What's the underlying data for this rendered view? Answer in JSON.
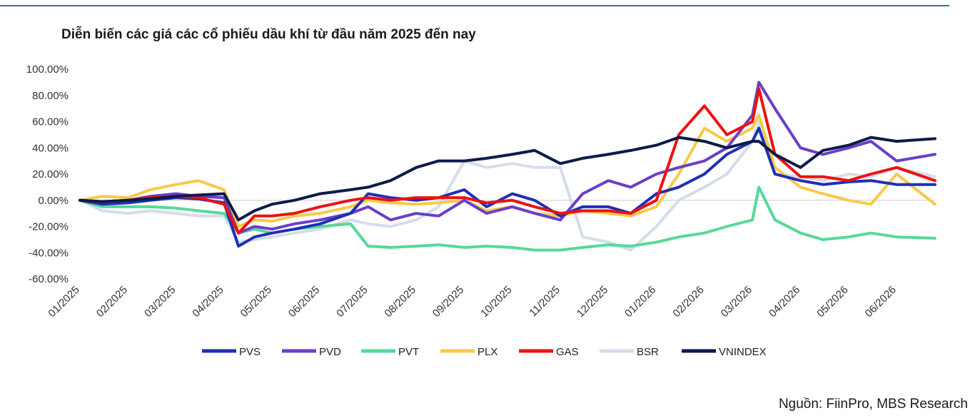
{
  "page": {
    "title": "Diễn biến các giá các cổ phiếu dầu khí từ đầu năm 2025 đến nay",
    "source": "Nguồn: FiinPro, MBS Research"
  },
  "chart_data": {
    "type": "line",
    "title": "Diễn biến các giá các cổ phiếu dầu khí từ đầu năm 2025 đến nay",
    "xlabel": "",
    "ylabel": "",
    "x_ticks": [
      "01/2025",
      "02/2025",
      "03/2025",
      "04/2025",
      "05/2025",
      "06/2025",
      "07/2025",
      "08/2025",
      "09/2025",
      "10/2025",
      "11/2025",
      "12/2025",
      "01/2026",
      "02/2026",
      "03/2026",
      "04/2026",
      "05/2026",
      "06/2026"
    ],
    "y_ticks": [
      "100.00%",
      "80.00%",
      "60.00%",
      "40.00%",
      "20.00%",
      "0.00%",
      "-20.00%",
      "-40.00%",
      "-60.00%"
    ],
    "ylim": [
      -60,
      100
    ],
    "x_range": [
      "2025-01",
      "2026-06-25"
    ],
    "grid": "zero-line only",
    "legend_position": "bottom",
    "series": [
      {
        "name": "PVS",
        "color": "#1f2fb5",
        "points": [
          [
            "2025-01",
            0
          ],
          [
            "2025-01-15",
            -3
          ],
          [
            "2025-02",
            -2
          ],
          [
            "2025-02-15",
            0
          ],
          [
            "2025-03",
            2
          ],
          [
            "2025-03-15",
            1
          ],
          [
            "2025-04",
            -2
          ],
          [
            "2025-04-10",
            -35
          ],
          [
            "2025-04-20",
            -28
          ],
          [
            "2025-05",
            -25
          ],
          [
            "2025-05-15",
            -22
          ],
          [
            "2025-06",
            -18
          ],
          [
            "2025-06-20",
            -10
          ],
          [
            "2025-07",
            5
          ],
          [
            "2025-07-15",
            2
          ],
          [
            "2025-08",
            0
          ],
          [
            "2025-08-15",
            2
          ],
          [
            "2025-09",
            8
          ],
          [
            "2025-09-15",
            -5
          ],
          [
            "2025-10",
            5
          ],
          [
            "2025-10-15",
            0
          ],
          [
            "2025-11",
            -12
          ],
          [
            "2025-11-15",
            -5
          ],
          [
            "2025-12",
            -5
          ],
          [
            "2025-12-15",
            -10
          ],
          [
            "2026-01",
            5
          ],
          [
            "2026-01-15",
            10
          ],
          [
            "2026-02",
            20
          ],
          [
            "2026-02-15",
            35
          ],
          [
            "2026-03",
            45
          ],
          [
            "2026-03-05",
            55
          ],
          [
            "2026-03-15",
            20
          ],
          [
            "2026-04",
            15
          ],
          [
            "2026-04-15",
            12
          ],
          [
            "2026-05",
            14
          ],
          [
            "2026-05-15",
            15
          ],
          [
            "2026-06",
            12
          ],
          [
            "2026-06-25",
            12
          ]
        ]
      },
      {
        "name": "PVD",
        "color": "#6a3fc9",
        "points": [
          [
            "2025-01",
            0
          ],
          [
            "2025-01-15",
            -2
          ],
          [
            "2025-02",
            0
          ],
          [
            "2025-02-15",
            3
          ],
          [
            "2025-03",
            5
          ],
          [
            "2025-03-15",
            3
          ],
          [
            "2025-04",
            2
          ],
          [
            "2025-04-10",
            -25
          ],
          [
            "2025-04-20",
            -20
          ],
          [
            "2025-05",
            -22
          ],
          [
            "2025-05-15",
            -18
          ],
          [
            "2025-06",
            -15
          ],
          [
            "2025-06-20",
            -10
          ],
          [
            "2025-07",
            -5
          ],
          [
            "2025-07-15",
            -15
          ],
          [
            "2025-08",
            -10
          ],
          [
            "2025-08-15",
            -12
          ],
          [
            "2025-09",
            0
          ],
          [
            "2025-09-15",
            -10
          ],
          [
            "2025-10",
            -5
          ],
          [
            "2025-10-15",
            -10
          ],
          [
            "2025-11",
            -15
          ],
          [
            "2025-11-15",
            5
          ],
          [
            "2025-12",
            15
          ],
          [
            "2025-12-15",
            10
          ],
          [
            "2026-01",
            20
          ],
          [
            "2026-01-15",
            25
          ],
          [
            "2026-02",
            30
          ],
          [
            "2026-02-15",
            40
          ],
          [
            "2026-03",
            65
          ],
          [
            "2026-03-05",
            90
          ],
          [
            "2026-03-15",
            70
          ],
          [
            "2026-04",
            40
          ],
          [
            "2026-04-15",
            35
          ],
          [
            "2026-05",
            40
          ],
          [
            "2026-05-15",
            45
          ],
          [
            "2026-06",
            30
          ],
          [
            "2026-06-25",
            35
          ]
        ]
      },
      {
        "name": "PVT",
        "color": "#56d99a",
        "points": [
          [
            "2025-01",
            0
          ],
          [
            "2025-01-15",
            -5
          ],
          [
            "2025-02",
            -5
          ],
          [
            "2025-02-15",
            -5
          ],
          [
            "2025-03",
            -6
          ],
          [
            "2025-03-15",
            -8
          ],
          [
            "2025-04",
            -10
          ],
          [
            "2025-04-10",
            -25
          ],
          [
            "2025-04-20",
            -22
          ],
          [
            "2025-05",
            -25
          ],
          [
            "2025-05-15",
            -22
          ],
          [
            "2025-06",
            -20
          ],
          [
            "2025-06-20",
            -18
          ],
          [
            "2025-07",
            -35
          ],
          [
            "2025-07-15",
            -36
          ],
          [
            "2025-08",
            -35
          ],
          [
            "2025-08-15",
            -34
          ],
          [
            "2025-09",
            -36
          ],
          [
            "2025-09-15",
            -35
          ],
          [
            "2025-10",
            -36
          ],
          [
            "2025-10-15",
            -38
          ],
          [
            "2025-11",
            -38
          ],
          [
            "2025-11-15",
            -36
          ],
          [
            "2025-12",
            -34
          ],
          [
            "2025-12-15",
            -35
          ],
          [
            "2026-01",
            -32
          ],
          [
            "2026-01-15",
            -28
          ],
          [
            "2026-02",
            -25
          ],
          [
            "2026-02-15",
            -20
          ],
          [
            "2026-03",
            -15
          ],
          [
            "2026-03-05",
            10
          ],
          [
            "2026-03-15",
            -15
          ],
          [
            "2026-04",
            -25
          ],
          [
            "2026-04-15",
            -30
          ],
          [
            "2026-05",
            -28
          ],
          [
            "2026-05-15",
            -25
          ],
          [
            "2026-06",
            -28
          ],
          [
            "2026-06-25",
            -29
          ]
        ]
      },
      {
        "name": "PLX",
        "color": "#f8c94a",
        "points": [
          [
            "2025-01",
            0
          ],
          [
            "2025-01-15",
            3
          ],
          [
            "2025-02",
            2
          ],
          [
            "2025-02-15",
            8
          ],
          [
            "2025-03",
            12
          ],
          [
            "2025-03-15",
            15
          ],
          [
            "2025-04",
            8
          ],
          [
            "2025-04-10",
            -20
          ],
          [
            "2025-04-20",
            -15
          ],
          [
            "2025-05",
            -16
          ],
          [
            "2025-05-15",
            -12
          ],
          [
            "2025-06",
            -10
          ],
          [
            "2025-06-20",
            -5
          ],
          [
            "2025-07",
            0
          ],
          [
            "2025-07-15",
            -2
          ],
          [
            "2025-08",
            -3
          ],
          [
            "2025-08-15",
            -2
          ],
          [
            "2025-09",
            0
          ],
          [
            "2025-09-15",
            -8
          ],
          [
            "2025-10",
            -5
          ],
          [
            "2025-10-15",
            -10
          ],
          [
            "2025-11",
            -12
          ],
          [
            "2025-11-15",
            -8
          ],
          [
            "2025-12",
            -10
          ],
          [
            "2025-12-15",
            -12
          ],
          [
            "2026-01",
            -5
          ],
          [
            "2026-01-15",
            20
          ],
          [
            "2026-02",
            55
          ],
          [
            "2026-02-15",
            45
          ],
          [
            "2026-03",
            55
          ],
          [
            "2026-03-05",
            65
          ],
          [
            "2026-03-15",
            25
          ],
          [
            "2026-04",
            10
          ],
          [
            "2026-04-15",
            5
          ],
          [
            "2026-05",
            0
          ],
          [
            "2026-05-15",
            -3
          ],
          [
            "2026-06",
            20
          ],
          [
            "2026-06-25",
            -3
          ]
        ]
      },
      {
        "name": "GAS",
        "color": "#ee1111",
        "points": [
          [
            "2025-01",
            0
          ],
          [
            "2025-01-15",
            -1
          ],
          [
            "2025-02",
            0
          ],
          [
            "2025-02-15",
            2
          ],
          [
            "2025-03",
            3
          ],
          [
            "2025-03-15",
            2
          ],
          [
            "2025-04",
            -3
          ],
          [
            "2025-04-10",
            -25
          ],
          [
            "2025-04-20",
            -12
          ],
          [
            "2025-05",
            -12
          ],
          [
            "2025-05-15",
            -10
          ],
          [
            "2025-06",
            -5
          ],
          [
            "2025-06-20",
            0
          ],
          [
            "2025-07",
            2
          ],
          [
            "2025-07-15",
            0
          ],
          [
            "2025-08",
            2
          ],
          [
            "2025-08-15",
            2
          ],
          [
            "2025-09",
            2
          ],
          [
            "2025-09-15",
            -2
          ],
          [
            "2025-10",
            0
          ],
          [
            "2025-10-15",
            -5
          ],
          [
            "2025-11",
            -10
          ],
          [
            "2025-11-15",
            -8
          ],
          [
            "2025-12",
            -8
          ],
          [
            "2025-12-15",
            -10
          ],
          [
            "2026-01",
            0
          ],
          [
            "2026-01-15",
            50
          ],
          [
            "2026-02",
            72
          ],
          [
            "2026-02-15",
            50
          ],
          [
            "2026-03",
            60
          ],
          [
            "2026-03-05",
            85
          ],
          [
            "2026-03-15",
            35
          ],
          [
            "2026-04",
            18
          ],
          [
            "2026-04-15",
            18
          ],
          [
            "2026-05",
            15
          ],
          [
            "2026-05-15",
            20
          ],
          [
            "2026-06",
            25
          ],
          [
            "2026-06-25",
            15
          ]
        ]
      },
      {
        "name": "BSR",
        "color": "#d4ddeb",
        "points": [
          [
            "2025-01",
            0
          ],
          [
            "2025-01-15",
            -8
          ],
          [
            "2025-02",
            -10
          ],
          [
            "2025-02-15",
            -8
          ],
          [
            "2025-03",
            -10
          ],
          [
            "2025-03-15",
            -12
          ],
          [
            "2025-04",
            -12
          ],
          [
            "2025-04-10",
            -32
          ],
          [
            "2025-04-20",
            -30
          ],
          [
            "2025-05",
            -28
          ],
          [
            "2025-05-15",
            -25
          ],
          [
            "2025-06",
            -22
          ],
          [
            "2025-06-20",
            -15
          ],
          [
            "2025-07",
            -18
          ],
          [
            "2025-07-15",
            -20
          ],
          [
            "2025-08",
            -15
          ],
          [
            "2025-08-15",
            -5
          ],
          [
            "2025-09",
            30
          ],
          [
            "2025-09-15",
            25
          ],
          [
            "2025-10",
            28
          ],
          [
            "2025-10-15",
            25
          ],
          [
            "2025-11",
            25
          ],
          [
            "2025-11-15",
            -28
          ],
          [
            "2025-12",
            -32
          ],
          [
            "2025-12-15",
            -38
          ],
          [
            "2026-01",
            -20
          ],
          [
            "2026-01-15",
            0
          ],
          [
            "2026-02",
            10
          ],
          [
            "2026-02-15",
            20
          ],
          [
            "2026-03",
            45
          ],
          [
            "2026-03-05",
            60
          ],
          [
            "2026-03-15",
            20
          ],
          [
            "2026-04",
            18
          ],
          [
            "2026-04-15",
            15
          ],
          [
            "2026-05",
            20
          ],
          [
            "2026-05-15",
            18
          ],
          [
            "2026-06",
            25
          ],
          [
            "2026-06-25",
            18
          ]
        ]
      },
      {
        "name": "VNINDEX",
        "color": "#0d1a4a",
        "points": [
          [
            "2025-01",
            0
          ],
          [
            "2025-01-15",
            -1
          ],
          [
            "2025-02",
            0
          ],
          [
            "2025-02-15",
            1
          ],
          [
            "2025-03",
            3
          ],
          [
            "2025-03-15",
            4
          ],
          [
            "2025-04",
            5
          ],
          [
            "2025-04-10",
            -15
          ],
          [
            "2025-04-20",
            -8
          ],
          [
            "2025-05",
            -3
          ],
          [
            "2025-05-15",
            0
          ],
          [
            "2025-06",
            5
          ],
          [
            "2025-06-20",
            8
          ],
          [
            "2025-07",
            10
          ],
          [
            "2025-07-15",
            15
          ],
          [
            "2025-08",
            25
          ],
          [
            "2025-08-15",
            30
          ],
          [
            "2025-09",
            30
          ],
          [
            "2025-09-15",
            32
          ],
          [
            "2025-10",
            35
          ],
          [
            "2025-10-15",
            38
          ],
          [
            "2025-11",
            28
          ],
          [
            "2025-11-15",
            32
          ],
          [
            "2025-12",
            35
          ],
          [
            "2025-12-15",
            38
          ],
          [
            "2026-01",
            42
          ],
          [
            "2026-01-15",
            48
          ],
          [
            "2026-02",
            45
          ],
          [
            "2026-02-15",
            40
          ],
          [
            "2026-03",
            45
          ],
          [
            "2026-03-05",
            45
          ],
          [
            "2026-03-15",
            35
          ],
          [
            "2026-04",
            25
          ],
          [
            "2026-04-15",
            38
          ],
          [
            "2026-05",
            42
          ],
          [
            "2026-05-15",
            48
          ],
          [
            "2026-06",
            45
          ],
          [
            "2026-06-25",
            47
          ]
        ]
      }
    ]
  }
}
